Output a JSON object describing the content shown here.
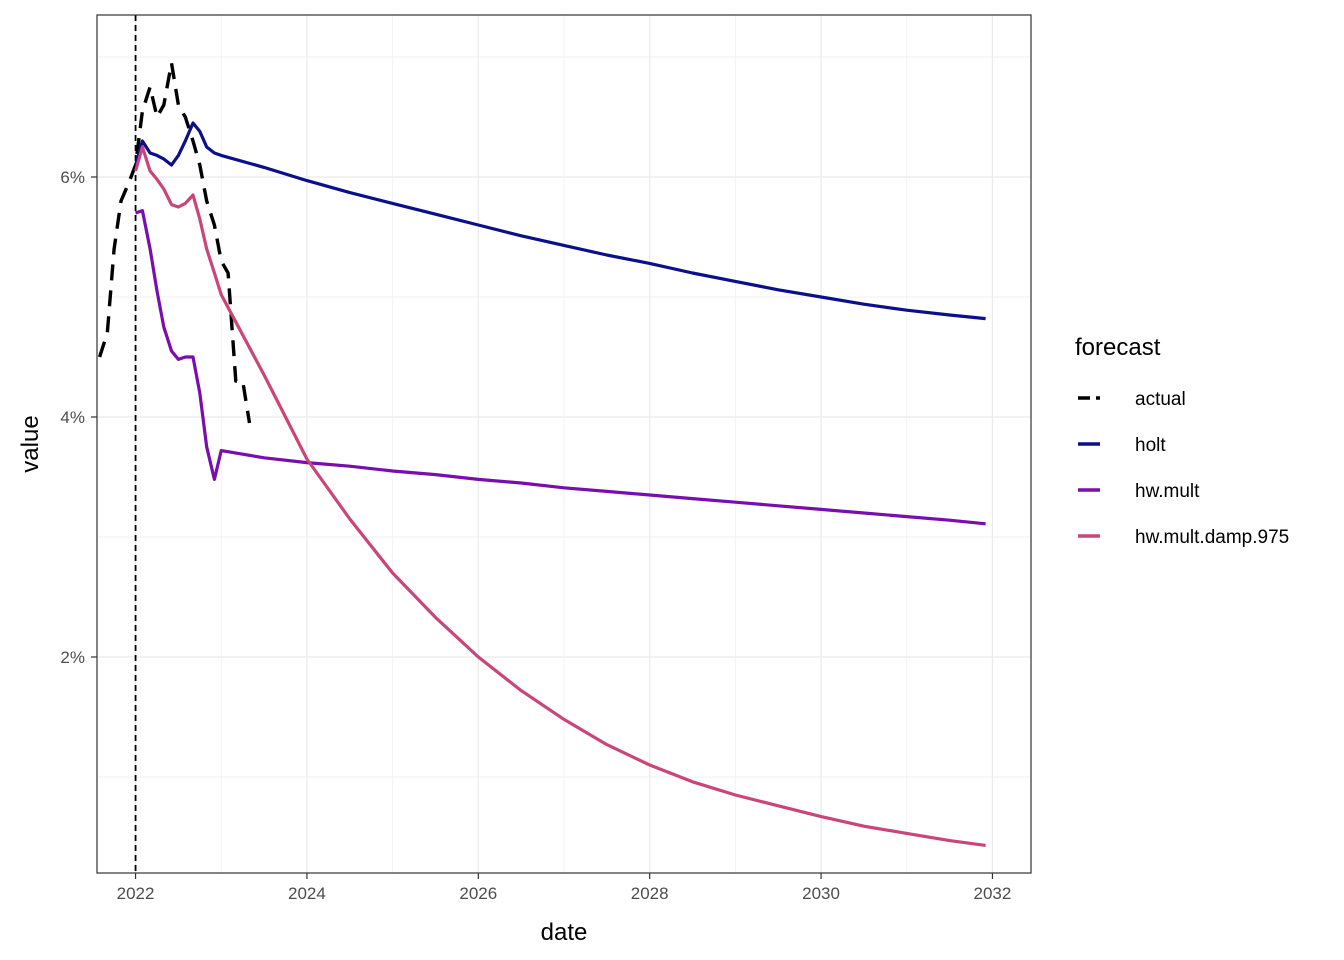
{
  "chart_data": {
    "type": "line",
    "title": "",
    "xlabel": "date",
    "ylabel": "value",
    "xlim": [
      2021.55,
      2032.45
    ],
    "ylim": [
      0.2,
      7.35
    ],
    "x_ticks": [
      2022,
      2024,
      2026,
      2028,
      2030,
      2032
    ],
    "x_tick_labels": [
      "2022",
      "2024",
      "2026",
      "2028",
      "2030",
      "2032"
    ],
    "y_ticks": [
      2,
      4,
      6
    ],
    "y_tick_labels": [
      "2%",
      "4%",
      "6%"
    ],
    "grid": true,
    "vline": 2022,
    "legend": {
      "title": "forecast",
      "position": "right"
    },
    "series": [
      {
        "name": "actual",
        "color": "#000000",
        "dash": true,
        "x": [
          2021.58,
          2021.67,
          2021.75,
          2021.83,
          2021.92,
          2022.0,
          2022.08,
          2022.17,
          2022.25,
          2022.33,
          2022.42,
          2022.5,
          2022.58,
          2022.67,
          2022.75,
          2022.83,
          2022.92,
          2023.0,
          2023.08,
          2023.17,
          2023.25,
          2023.33
        ],
        "values": [
          4.5,
          4.7,
          5.4,
          5.8,
          5.95,
          6.1,
          6.55,
          6.75,
          6.5,
          6.6,
          6.95,
          6.6,
          6.5,
          6.3,
          6.1,
          5.8,
          5.6,
          5.3,
          5.2,
          4.3,
          4.3,
          3.95
        ]
      },
      {
        "name": "holt",
        "color": "#0b0f8a",
        "dash": false,
        "x": [
          2022.0,
          2022.08,
          2022.17,
          2022.25,
          2022.33,
          2022.42,
          2022.5,
          2022.58,
          2022.67,
          2022.75,
          2022.83,
          2022.92,
          2023.0,
          2023.5,
          2024.0,
          2024.5,
          2025.0,
          2025.5,
          2026.0,
          2026.5,
          2027.0,
          2027.5,
          2028.0,
          2028.5,
          2029.0,
          2029.5,
          2030.0,
          2030.5,
          2031.0,
          2031.5,
          2031.92
        ],
        "values": [
          6.1,
          6.3,
          6.2,
          6.18,
          6.15,
          6.1,
          6.18,
          6.3,
          6.45,
          6.38,
          6.25,
          6.2,
          6.18,
          6.08,
          5.97,
          5.87,
          5.78,
          5.69,
          5.6,
          5.51,
          5.43,
          5.35,
          5.28,
          5.2,
          5.13,
          5.06,
          5.0,
          4.94,
          4.89,
          4.85,
          4.82
        ]
      },
      {
        "name": "hw.mult",
        "color": "#7a0eac",
        "dash": false,
        "x": [
          2022.0,
          2022.08,
          2022.17,
          2022.25,
          2022.33,
          2022.42,
          2022.5,
          2022.58,
          2022.67,
          2022.75,
          2022.83,
          2022.92,
          2023.0,
          2023.5,
          2024.0,
          2024.5,
          2025.0,
          2025.5,
          2026.0,
          2026.5,
          2027.0,
          2027.5,
          2028.0,
          2028.5,
          2029.0,
          2029.5,
          2030.0,
          2030.5,
          2031.0,
          2031.5,
          2031.92
        ],
        "values": [
          5.7,
          5.72,
          5.4,
          5.05,
          4.75,
          4.55,
          4.48,
          4.5,
          4.5,
          4.2,
          3.75,
          3.48,
          3.72,
          3.66,
          3.62,
          3.59,
          3.55,
          3.52,
          3.48,
          3.45,
          3.41,
          3.38,
          3.35,
          3.32,
          3.29,
          3.26,
          3.23,
          3.2,
          3.17,
          3.14,
          3.11
        ]
      },
      {
        "name": "hw.mult.damp.975",
        "color": "#c9457a",
        "dash": false,
        "x": [
          2022.0,
          2022.08,
          2022.17,
          2022.25,
          2022.33,
          2022.42,
          2022.5,
          2022.58,
          2022.67,
          2022.75,
          2022.83,
          2022.92,
          2023.0,
          2023.5,
          2024.0,
          2024.5,
          2025.0,
          2025.5,
          2026.0,
          2026.5,
          2027.0,
          2027.5,
          2028.0,
          2028.5,
          2029.0,
          2029.5,
          2030.0,
          2030.5,
          2031.0,
          2031.5,
          2031.92
        ],
        "values": [
          6.05,
          6.25,
          6.05,
          5.98,
          5.9,
          5.77,
          5.75,
          5.78,
          5.85,
          5.65,
          5.4,
          5.2,
          5.02,
          4.35,
          3.65,
          3.15,
          2.7,
          2.33,
          2.0,
          1.72,
          1.48,
          1.27,
          1.1,
          0.96,
          0.85,
          0.76,
          0.67,
          0.59,
          0.53,
          0.47,
          0.43
        ]
      }
    ]
  }
}
